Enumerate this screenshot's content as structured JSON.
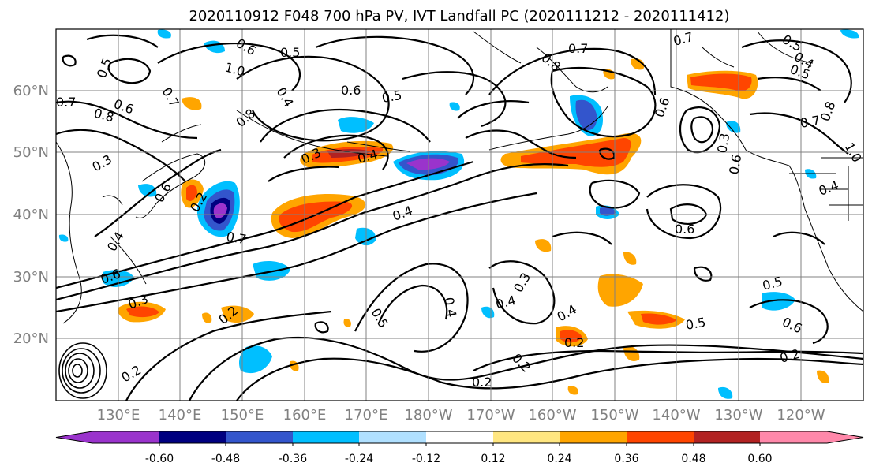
{
  "title": "2020110912 F048 700 hPa PV, IVT Landfall PC (2020111212 - 2020111412)",
  "axes": {
    "lat_labels": [
      "60°N",
      "50°N",
      "40°N",
      "30°N",
      "20°N"
    ],
    "lon_labels": [
      "130°E",
      "140°E",
      "150°E",
      "160°E",
      "170°E",
      "180°W",
      "170°W",
      "160°W",
      "150°W",
      "140°W",
      "130°W",
      "120°W"
    ]
  },
  "colorbar": {
    "ticks": [
      "-0.60",
      "-0.48",
      "-0.36",
      "-0.24",
      "-0.12",
      "0.12",
      "0.24",
      "0.36",
      "0.48",
      "0.60"
    ],
    "colors": [
      "#9a33cc",
      "#000080",
      "#3355cc",
      "#00bfff",
      "#b0e0ff",
      "#ffffff",
      "#ffe680",
      "#ffa500",
      "#ff4500",
      "#b22222",
      "#ff88aa"
    ]
  },
  "contour_labels": [
    "0.6",
    "0.5",
    "1.0",
    "0.7",
    "0.6",
    "0.5",
    "0.6",
    "0.8",
    "0.8",
    "0.3",
    "0.4",
    "0.4",
    "0.3",
    "0.7",
    "0.4",
    "0.6",
    "0.3",
    "0.2",
    "0.5",
    "0.4",
    "0.4",
    "0.3",
    "0.2",
    "0.2",
    "0.5",
    "0.6",
    "0.2",
    "0.6",
    "0.8",
    "0.7",
    "0.5",
    "0.4",
    "0.5",
    "0.7",
    "0.8",
    "0.3",
    "0.6",
    "0.4",
    "0.4",
    "0.5",
    "0.6",
    "0.2",
    "0.2",
    "0.7",
    "1.0",
    "0.7",
    "0.5",
    "0.4",
    "0.6",
    "0.2"
  ]
}
